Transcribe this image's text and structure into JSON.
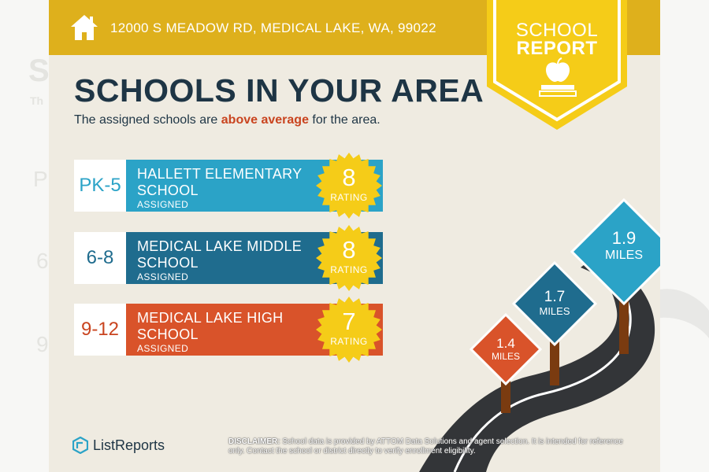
{
  "header": {
    "address": "12000 S MEADOW RD, MEDICAL LAKE, WA, 99022",
    "badge_line1": "SCHOOL",
    "badge_line2": "REPORT"
  },
  "main": {
    "title": "SCHOOLS IN YOUR AREA",
    "subtitle_prefix": "The assigned schools are ",
    "subtitle_highlight": "above average",
    "subtitle_suffix": " for the area."
  },
  "schools": [
    {
      "grades": "PK-5",
      "name": "HALLETT ELEMENTARY SCHOOL",
      "status": "ASSIGNED",
      "rating": "8",
      "rating_label": "RATING",
      "color": "#2ba3c7",
      "grade_color": "#2ba3c7"
    },
    {
      "grades": "6-8",
      "name": "MEDICAL LAKE MIDDLE SCHOOL",
      "status": "ASSIGNED",
      "rating": "8",
      "rating_label": "RATING",
      "color": "#1f6c8e",
      "grade_color": "#1f6c8e"
    },
    {
      "grades": "9-12",
      "name": "MEDICAL LAKE HIGH SCHOOL",
      "status": "ASSIGNED",
      "rating": "7",
      "rating_label": "RATING",
      "color": "#d9532a",
      "grade_color": "#c9441f"
    }
  ],
  "signs": [
    {
      "value": "1.4",
      "unit": "MILES",
      "color": "#d9532a"
    },
    {
      "value": "1.7",
      "unit": "MILES",
      "color": "#1f6c8e"
    },
    {
      "value": "1.9",
      "unit": "MILES",
      "color": "#2ba3c7"
    }
  ],
  "footer": {
    "brand": "ListReports",
    "disclaimer_label": "DISCLAIMER:",
    "disclaimer_text": " School data is provided by ATTOM Data Solutions and agent selection. It is intended for reference only. Contact the school or district directly to verify enrollment eligibility."
  },
  "colors": {
    "topbar": "#deb01c",
    "card_bg": "#efebe1",
    "headline": "#1e3545",
    "highlight": "#c9441f",
    "seal": "#f5cc18",
    "road": "#333538"
  }
}
